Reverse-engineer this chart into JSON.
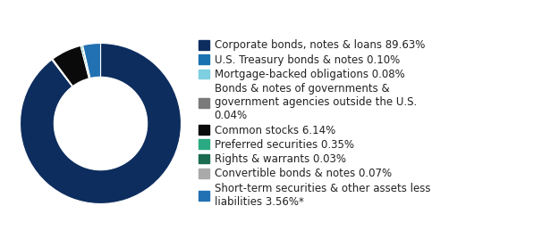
{
  "labels": [
    "Corporate bonds, notes & loans 89.63%",
    "U.S. Treasury bonds & notes 0.10%",
    "Mortgage-backed obligations 0.08%",
    "Bonds & notes of governments &\ngovernment agencies outside the U.S.\n0.04%",
    "Common stocks 6.14%",
    "Preferred securities 0.35%",
    "Rights & warrants 0.03%",
    "Convertible bonds & notes 0.07%",
    "Short-term securities & other assets less\nliabilities 3.56%*"
  ],
  "values": [
    89.63,
    0.1,
    0.08,
    0.04,
    6.14,
    0.35,
    0.03,
    0.07,
    3.56
  ],
  "colors": [
    "#0d2d5e",
    "#1a72b0",
    "#7ecfdf",
    "#7a7a7a",
    "#0a0a0a",
    "#2aaa82",
    "#1a6b50",
    "#aaaaaa",
    "#2271b3"
  ],
  "background_color": "#ffffff",
  "wedge_edge_color": "#ffffff",
  "donut_width": 0.42,
  "legend_fontsize": 8.5,
  "startangle": 90
}
